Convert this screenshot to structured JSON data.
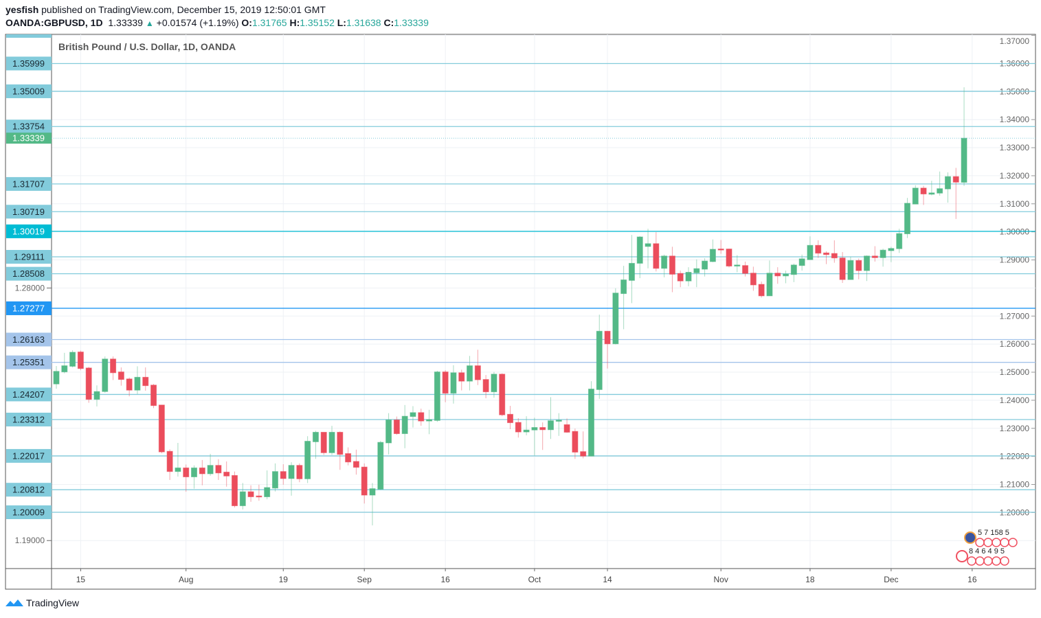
{
  "header": {
    "author": "yesfish",
    "published": "published on TradingView.com, December 15, 2019 12:50:01 GMT",
    "symbol": "OANDA:GBPUSD, 1D",
    "last": "1.33339",
    "change": "+0.01574 (+1.19%)",
    "o_label": "O:",
    "o": "1.31765",
    "h_label": "H:",
    "h": "1.35152",
    "l_label": "L:",
    "l": "1.31638",
    "c_label": "C:",
    "c": "1.33339"
  },
  "footer": {
    "brand": "TradingView"
  },
  "colors": {
    "up": "#53b987",
    "down": "#eb4d5c",
    "line": "#82cbdb",
    "cyan": "#00bcd4",
    "blue": "#2196f3",
    "lightblue": "#a4c4ea",
    "last": "#53b987"
  },
  "chart_data": {
    "type": "candlestick",
    "title": "British Pound / U.S. Dollar, 1D, OANDA",
    "ylim": [
      1.1805,
      1.3717
    ],
    "y_ticks": [
      "1.19000",
      "1.20000",
      "1.21000",
      "1.22000",
      "1.23000",
      "1.24000",
      "1.25000",
      "1.26000",
      "1.27000",
      "1.28000",
      "1.29000",
      "1.30000",
      "1.31000",
      "1.32000",
      "1.33000",
      "1.34000",
      "1.35000",
      "1.36000",
      "1.37000"
    ],
    "x_ticks": [
      {
        "label": "15",
        "index": 3
      },
      {
        "label": "Aug",
        "index": 16
      },
      {
        "label": "19",
        "index": 28
      },
      {
        "label": "Sep",
        "index": 38
      },
      {
        "label": "16",
        "index": 48
      },
      {
        "label": "Oct",
        "index": 59
      },
      {
        "label": "14",
        "index": 68
      },
      {
        "label": "Nov",
        "index": 82
      },
      {
        "label": "18",
        "index": 93
      },
      {
        "label": "Dec",
        "index": 103
      },
      {
        "label": "16",
        "index": 113
      }
    ],
    "levels": [
      {
        "label": "1.35999",
        "value": 1.35999,
        "style": "line"
      },
      {
        "label": "1.35009",
        "value": 1.35009,
        "style": "line"
      },
      {
        "label": "1.33754",
        "value": 1.33754,
        "style": "line"
      },
      {
        "label": "1.31707",
        "value": 1.31707,
        "style": "line"
      },
      {
        "label": "1.30719",
        "value": 1.30719,
        "style": "line"
      },
      {
        "label": "1.30019",
        "value": 1.30019,
        "style": "cyan"
      },
      {
        "label": "1.29111",
        "value": 1.29111,
        "style": "line"
      },
      {
        "label": "1.28508",
        "value": 1.28508,
        "style": "line"
      },
      {
        "label": "1.27277",
        "value": 1.27277,
        "style": "blue"
      },
      {
        "label": "1.26163",
        "value": 1.26163,
        "style": "lightblue"
      },
      {
        "label": "1.25351",
        "value": 1.25351,
        "style": "lightblue"
      },
      {
        "label": "1.24207",
        "value": 1.24207,
        "style": "line"
      },
      {
        "label": "1.23312",
        "value": 1.23312,
        "style": "line"
      },
      {
        "label": "1.22017",
        "value": 1.22017,
        "style": "line"
      },
      {
        "label": "1.20812",
        "value": 1.20812,
        "style": "line"
      },
      {
        "label": "1.20009",
        "value": 1.20009,
        "style": "line"
      }
    ],
    "last_price": {
      "label": "1.33339",
      "value": 1.33339
    },
    "ohlc": [
      [
        1.2458,
        1.2522,
        1.2441,
        1.2503
      ],
      [
        1.2501,
        1.2569,
        1.2496,
        1.2523
      ],
      [
        1.2521,
        1.2578,
        1.2517,
        1.2571
      ],
      [
        1.2572,
        1.2577,
        1.2507,
        1.2513
      ],
      [
        1.2515,
        1.2519,
        1.2391,
        1.2403
      ],
      [
        1.2403,
        1.2453,
        1.2378,
        1.2431
      ],
      [
        1.2431,
        1.2556,
        1.2427,
        1.2547
      ],
      [
        1.2547,
        1.2556,
        1.2472,
        1.2498
      ],
      [
        1.2501,
        1.2517,
        1.2452,
        1.2474
      ],
      [
        1.2476,
        1.2481,
        1.2414,
        1.2436
      ],
      [
        1.2436,
        1.2521,
        1.2422,
        1.2482
      ],
      [
        1.2482,
        1.2517,
        1.2434,
        1.2452
      ],
      [
        1.2454,
        1.2458,
        1.2372,
        1.2381
      ],
      [
        1.2383,
        1.2383,
        1.2211,
        1.2216
      ],
      [
        1.2218,
        1.2225,
        1.2116,
        1.2146
      ],
      [
        1.2146,
        1.2248,
        1.2128,
        1.2159
      ],
      [
        1.2159,
        1.2171,
        1.2074,
        1.2127
      ],
      [
        1.2127,
        1.2168,
        1.2085,
        1.2159
      ],
      [
        1.2159,
        1.2187,
        1.2097,
        1.2138
      ],
      [
        1.2138,
        1.2209,
        1.2131,
        1.2168
      ],
      [
        1.2168,
        1.219,
        1.2116,
        1.2141
      ],
      [
        1.2144,
        1.2182,
        1.2092,
        1.213
      ],
      [
        1.2132,
        1.2146,
        1.2018,
        1.2024
      ],
      [
        1.2024,
        1.2105,
        1.2011,
        1.2074
      ],
      [
        1.2074,
        1.2097,
        1.2038,
        1.2056
      ],
      [
        1.2059,
        1.2099,
        1.2042,
        1.2056
      ],
      [
        1.2056,
        1.215,
        1.2047,
        1.2089
      ],
      [
        1.2087,
        1.2175,
        1.2075,
        1.2146
      ],
      [
        1.2146,
        1.2172,
        1.2099,
        1.2121
      ],
      [
        1.2121,
        1.2179,
        1.206,
        1.2168
      ],
      [
        1.2168,
        1.2175,
        1.2108,
        1.212
      ],
      [
        1.212,
        1.2272,
        1.2105,
        1.2254
      ],
      [
        1.2252,
        1.2291,
        1.2191,
        1.2286
      ],
      [
        1.2286,
        1.2286,
        1.2205,
        1.2213
      ],
      [
        1.2213,
        1.2309,
        1.2205,
        1.2286
      ],
      [
        1.2286,
        1.2289,
        1.2152,
        1.2207
      ],
      [
        1.221,
        1.2232,
        1.2168,
        1.218
      ],
      [
        1.2182,
        1.2224,
        1.2135,
        1.2161
      ],
      [
        1.2162,
        1.2175,
        1.2032,
        1.2062
      ],
      [
        1.2062,
        1.2105,
        1.1954,
        1.2085
      ],
      [
        1.2083,
        1.2255,
        1.2081,
        1.225
      ],
      [
        1.2248,
        1.2354,
        1.2207,
        1.233
      ],
      [
        1.233,
        1.2342,
        1.2277,
        1.2281
      ],
      [
        1.2281,
        1.2383,
        1.2229,
        1.2343
      ],
      [
        1.2342,
        1.2379,
        1.2303,
        1.2356
      ],
      [
        1.2356,
        1.237,
        1.2309,
        1.2326
      ],
      [
        1.2326,
        1.2366,
        1.2279,
        1.2331
      ],
      [
        1.2328,
        1.2505,
        1.2323,
        1.2501
      ],
      [
        1.2501,
        1.2507,
        1.2393,
        1.2425
      ],
      [
        1.2425,
        1.2525,
        1.2388,
        1.2498
      ],
      [
        1.2498,
        1.2509,
        1.2435,
        1.2468
      ],
      [
        1.2468,
        1.2558,
        1.2435,
        1.2523
      ],
      [
        1.2523,
        1.258,
        1.2454,
        1.2473
      ],
      [
        1.2474,
        1.249,
        1.2407,
        1.243
      ],
      [
        1.243,
        1.2501,
        1.2409,
        1.2493
      ],
      [
        1.2493,
        1.2496,
        1.2343,
        1.2348
      ],
      [
        1.235,
        1.238,
        1.2297,
        1.232
      ],
      [
        1.2321,
        1.2336,
        1.2267,
        1.2287
      ],
      [
        1.2287,
        1.2343,
        1.2275,
        1.2294
      ],
      [
        1.2294,
        1.2338,
        1.2203,
        1.2303
      ],
      [
        1.2303,
        1.2321,
        1.2223,
        1.2295
      ],
      [
        1.2295,
        1.2411,
        1.2262,
        1.2327
      ],
      [
        1.2325,
        1.2354,
        1.2273,
        1.2329
      ],
      [
        1.2313,
        1.2335,
        1.2284,
        1.2286
      ],
      [
        1.2289,
        1.2299,
        1.2191,
        1.2215
      ],
      [
        1.2217,
        1.2289,
        1.2193,
        1.2201
      ],
      [
        1.2201,
        1.2468,
        1.2201,
        1.244
      ],
      [
        1.2438,
        1.2705,
        1.2405,
        1.2646
      ],
      [
        1.2646,
        1.2647,
        1.2513,
        1.2601
      ],
      [
        1.2601,
        1.2799,
        1.2599,
        1.2782
      ],
      [
        1.278,
        1.2879,
        1.2653,
        1.2829
      ],
      [
        1.2827,
        1.2989,
        1.2746,
        1.2888
      ],
      [
        1.2888,
        1.2985,
        1.2835,
        1.2982
      ],
      [
        1.2948,
        1.3011,
        1.287,
        1.2958
      ],
      [
        1.2958,
        1.2999,
        1.2859,
        1.287
      ],
      [
        1.287,
        1.2919,
        1.2838,
        1.2914
      ],
      [
        1.2914,
        1.2947,
        1.2785,
        1.2849
      ],
      [
        1.2852,
        1.2862,
        1.2803,
        1.2825
      ],
      [
        1.2825,
        1.2874,
        1.2806,
        1.2856
      ],
      [
        1.2854,
        1.2902,
        1.2803,
        1.2869
      ],
      [
        1.2867,
        1.2906,
        1.2841,
        1.2896
      ],
      [
        1.2894,
        1.2973,
        1.2892,
        1.2938
      ],
      [
        1.2939,
        1.2971,
        1.2922,
        1.2936
      ],
      [
        1.2939,
        1.294,
        1.2873,
        1.2878
      ],
      [
        1.2878,
        1.2917,
        1.2856,
        1.2882
      ],
      [
        1.288,
        1.2894,
        1.2841,
        1.2852
      ],
      [
        1.2853,
        1.2876,
        1.279,
        1.2811
      ],
      [
        1.2813,
        1.2823,
        1.2766,
        1.2772
      ],
      [
        1.2772,
        1.2898,
        1.2772,
        1.2853
      ],
      [
        1.2853,
        1.2874,
        1.2815,
        1.2843
      ],
      [
        1.2843,
        1.2862,
        1.2817,
        1.285
      ],
      [
        1.2848,
        1.2887,
        1.2821,
        1.2882
      ],
      [
        1.288,
        1.2919,
        1.2862,
        1.2904
      ],
      [
        1.2901,
        1.2984,
        1.2901,
        1.2952
      ],
      [
        1.2952,
        1.297,
        1.2907,
        1.2924
      ],
      [
        1.2925,
        1.2931,
        1.2885,
        1.2919
      ],
      [
        1.2923,
        1.297,
        1.289,
        1.2907
      ],
      [
        1.2907,
        1.2928,
        1.2818,
        1.283
      ],
      [
        1.283,
        1.2911,
        1.283,
        1.2898
      ],
      [
        1.2898,
        1.2905,
        1.2831,
        1.2862
      ],
      [
        1.2862,
        1.2916,
        1.2825,
        1.2914
      ],
      [
        1.2914,
        1.2949,
        1.2894,
        1.2908
      ],
      [
        1.2908,
        1.294,
        1.2876,
        1.2935
      ],
      [
        1.2933,
        1.2947,
        1.2892,
        1.2941
      ],
      [
        1.294,
        1.3011,
        1.2925,
        1.2994
      ],
      [
        1.2993,
        1.3121,
        1.2978,
        1.3102
      ],
      [
        1.3099,
        1.3166,
        1.3099,
        1.3156
      ],
      [
        1.3156,
        1.3164,
        1.3096,
        1.3135
      ],
      [
        1.3134,
        1.3182,
        1.313,
        1.3139
      ],
      [
        1.3138,
        1.3215,
        1.3129,
        1.3154
      ],
      [
        1.3153,
        1.3212,
        1.3104,
        1.3197
      ],
      [
        1.3197,
        1.3228,
        1.3046,
        1.3177
      ],
      [
        1.31765,
        1.35152,
        1.31638,
        1.33339
      ]
    ],
    "events": [
      {
        "flag": "GB",
        "label": "5 7 158 5"
      },
      {
        "flag": "US",
        "label": "8 4 6 4 9 5"
      }
    ]
  }
}
